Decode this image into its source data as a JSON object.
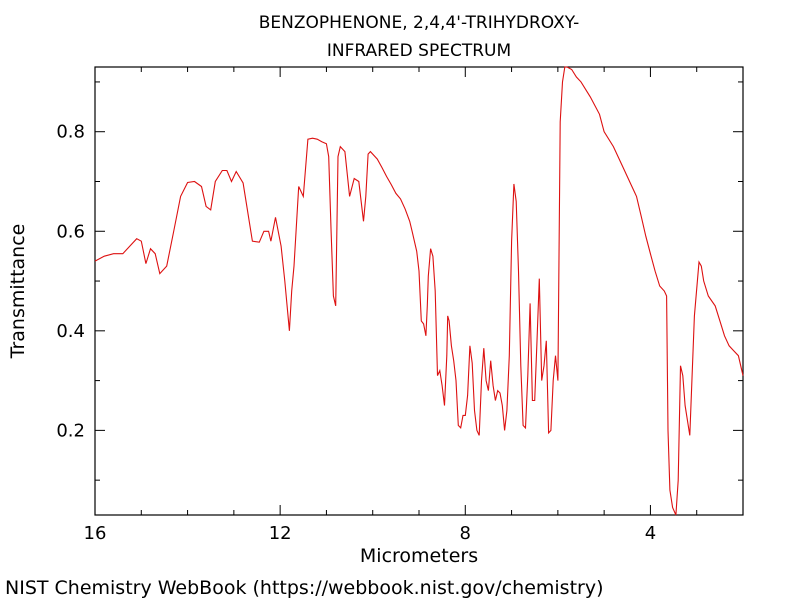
{
  "chart_data": {
    "type": "line",
    "title": "BENZOPHENONE, 2,4,4'-TRIHYDROXY-",
    "subtitle": "INFRARED SPECTRUM",
    "xlabel": "Micrometers",
    "ylabel": "Transmittance",
    "xlim": [
      16,
      2
    ],
    "ylim": [
      0.03,
      0.93
    ],
    "x_ticks": [
      16,
      12,
      8,
      4
    ],
    "x_tick_labels": [
      "16",
      "12",
      "8",
      "4"
    ],
    "y_ticks": [
      0.2,
      0.4,
      0.6,
      0.8
    ],
    "y_tick_labels": [
      "0.2",
      "0.4",
      "0.6",
      "0.8"
    ],
    "grid": false,
    "line_color": "#dd1111",
    "series": [
      {
        "x": [
          16.0,
          15.8,
          15.6,
          15.4,
          15.25,
          15.1,
          15.0,
          14.9,
          14.8,
          14.7,
          14.6,
          14.45,
          14.3,
          14.15,
          14.0,
          13.85,
          13.7,
          13.6,
          13.5,
          13.4,
          13.25,
          13.15,
          13.05,
          12.95,
          12.8,
          12.6,
          12.45,
          12.35,
          12.25,
          12.2,
          12.1,
          11.98,
          11.9,
          11.85,
          11.8,
          11.75,
          11.7,
          11.6,
          11.5,
          11.4,
          11.3,
          11.2,
          11.1,
          11.0,
          10.95,
          10.9,
          10.85,
          10.8,
          10.75,
          10.7,
          10.6,
          10.5,
          10.4,
          10.3,
          10.2,
          10.15,
          10.1,
          10.05,
          9.9,
          9.8,
          9.7,
          9.6,
          9.5,
          9.4,
          9.3,
          9.2,
          9.15,
          9.1,
          9.05,
          9.0,
          8.95,
          8.9,
          8.85,
          8.82,
          8.8,
          8.75,
          8.7,
          8.65,
          8.6,
          8.55,
          8.5,
          8.45,
          8.4,
          8.38,
          8.35,
          8.3,
          8.25,
          8.2,
          8.15,
          8.1,
          8.05,
          8.0,
          7.95,
          7.9,
          7.85,
          7.8,
          7.75,
          7.7,
          7.65,
          7.6,
          7.55,
          7.5,
          7.45,
          7.4,
          7.35,
          7.3,
          7.25,
          7.2,
          7.15,
          7.1,
          7.05,
          7.0,
          6.95,
          6.9,
          6.85,
          6.8,
          6.75,
          6.7,
          6.65,
          6.6,
          6.55,
          6.5,
          6.45,
          6.4,
          6.35,
          6.3,
          6.25,
          6.2,
          6.15,
          6.1,
          6.05,
          6.0,
          5.95,
          5.9,
          5.85,
          5.8,
          5.7,
          5.6,
          5.5,
          5.3,
          5.1,
          5.0,
          4.8,
          4.6,
          4.4,
          4.3,
          4.2,
          4.1,
          4.0,
          3.9,
          3.8,
          3.7,
          3.65,
          3.62,
          3.58,
          3.52,
          3.45,
          3.4,
          3.35,
          3.3,
          3.25,
          3.15,
          3.05,
          2.95,
          2.9,
          2.85,
          2.75,
          2.6,
          2.5,
          2.4,
          2.3,
          2.2,
          2.1,
          2.0
        ],
        "y": [
          0.54,
          0.55,
          0.555,
          0.555,
          0.57,
          0.585,
          0.58,
          0.535,
          0.565,
          0.555,
          0.515,
          0.53,
          0.6,
          0.67,
          0.698,
          0.7,
          0.69,
          0.65,
          0.643,
          0.7,
          0.722,
          0.722,
          0.7,
          0.72,
          0.697,
          0.58,
          0.578,
          0.6,
          0.6,
          0.58,
          0.628,
          0.57,
          0.5,
          0.45,
          0.4,
          0.48,
          0.53,
          0.69,
          0.67,
          0.785,
          0.787,
          0.785,
          0.78,
          0.776,
          0.75,
          0.6,
          0.47,
          0.45,
          0.75,
          0.77,
          0.76,
          0.67,
          0.706,
          0.7,
          0.62,
          0.67,
          0.755,
          0.76,
          0.745,
          0.728,
          0.71,
          0.694,
          0.676,
          0.665,
          0.645,
          0.62,
          0.6,
          0.58,
          0.56,
          0.52,
          0.42,
          0.414,
          0.39,
          0.45,
          0.51,
          0.565,
          0.55,
          0.48,
          0.31,
          0.32,
          0.29,
          0.25,
          0.35,
          0.43,
          0.42,
          0.37,
          0.34,
          0.3,
          0.21,
          0.205,
          0.23,
          0.23,
          0.27,
          0.37,
          0.335,
          0.24,
          0.2,
          0.19,
          0.3,
          0.365,
          0.3,
          0.28,
          0.34,
          0.29,
          0.26,
          0.28,
          0.275,
          0.25,
          0.2,
          0.24,
          0.35,
          0.58,
          0.695,
          0.66,
          0.52,
          0.33,
          0.21,
          0.205,
          0.31,
          0.455,
          0.26,
          0.26,
          0.38,
          0.505,
          0.3,
          0.33,
          0.38,
          0.195,
          0.2,
          0.3,
          0.35,
          0.3,
          0.82,
          0.9,
          0.93,
          0.935,
          0.925,
          0.91,
          0.9,
          0.87,
          0.835,
          0.8,
          0.77,
          0.73,
          0.69,
          0.67,
          0.63,
          0.59,
          0.555,
          0.52,
          0.49,
          0.48,
          0.47,
          0.2,
          0.08,
          0.045,
          0.03,
          0.1,
          0.33,
          0.31,
          0.25,
          0.19,
          0.43,
          0.538,
          0.53,
          0.5,
          0.47,
          0.45,
          0.42,
          0.39,
          0.37,
          0.36,
          0.35,
          0.31
        ]
      }
    ]
  },
  "footer": {
    "credit": "NIST Chemistry WebBook (https://webbook.nist.gov/chemistry)"
  }
}
